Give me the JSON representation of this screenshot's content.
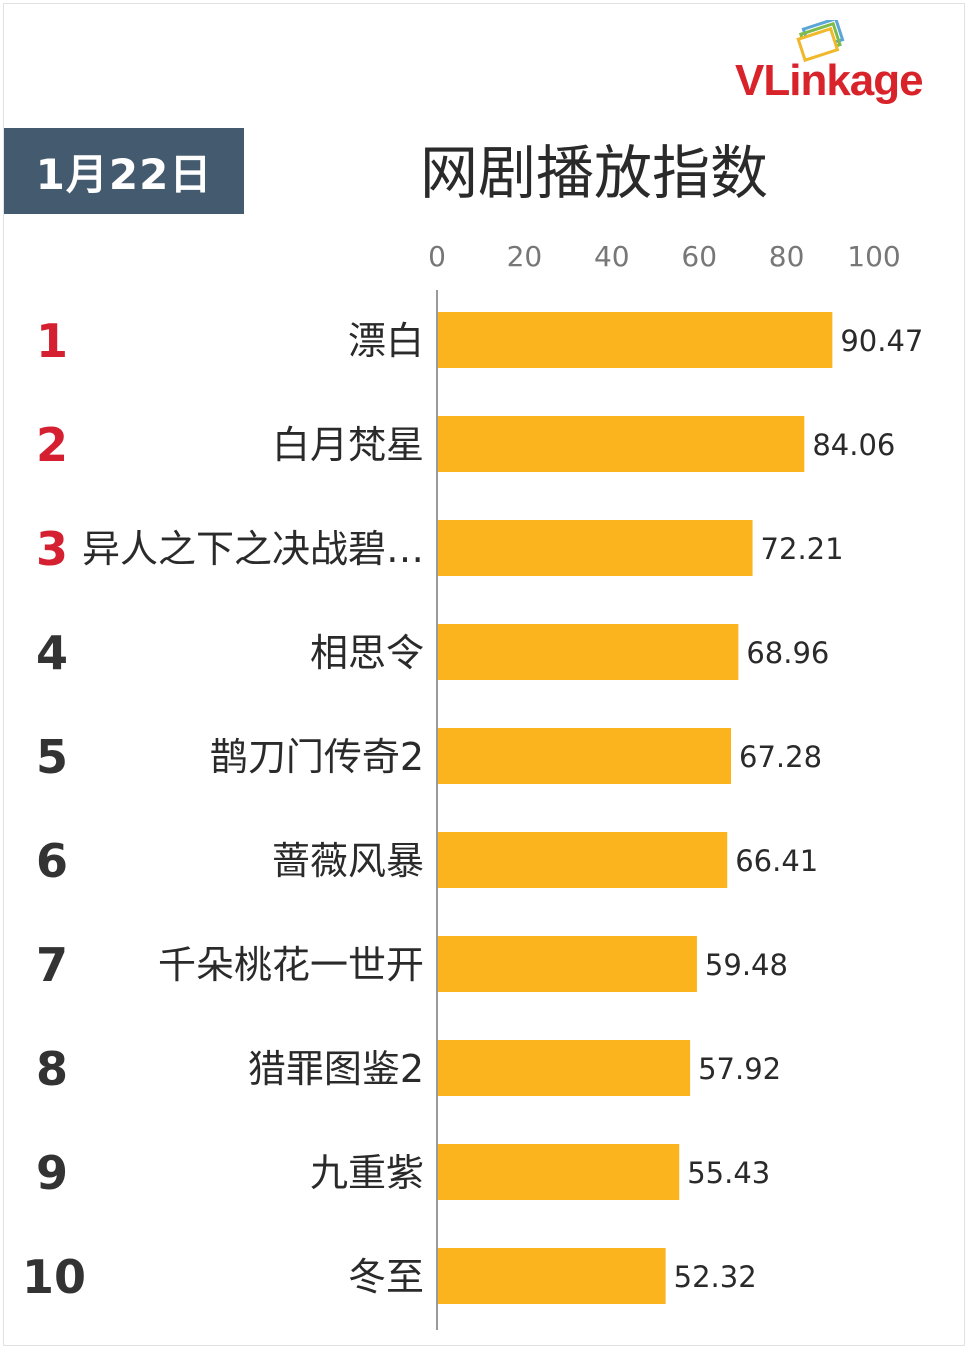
{
  "header": {
    "date_label": "1月22日",
    "logo": {
      "prefix": "VL",
      "suffix": "inkage",
      "color": "#d9232b",
      "icon": "stacked-cards-icon"
    }
  },
  "chart_data": {
    "type": "bar",
    "orientation": "horizontal",
    "title": "网剧播放指数",
    "xlim": [
      0,
      100
    ],
    "x_ticks": [
      "0",
      "20",
      "40",
      "60",
      "80",
      "100"
    ],
    "ranks": [
      "1",
      "2",
      "3",
      "4",
      "5",
      "6",
      "7",
      "8",
      "9",
      "10"
    ],
    "categories": [
      "漂白",
      "白月梵星",
      "异人之下之决战碧…",
      "相思令",
      "鹊刀门传奇2",
      "蔷薇风暴",
      "千朵桃花一世开",
      "猎罪图鉴2",
      "九重紫",
      "冬至"
    ],
    "values": [
      90.47,
      84.06,
      72.21,
      68.96,
      67.28,
      66.41,
      59.48,
      57.92,
      55.43,
      52.32
    ],
    "value_labels": [
      "90.47",
      "84.06",
      "72.21",
      "68.96",
      "67.28",
      "66.41",
      "59.48",
      "57.92",
      "55.43",
      "52.32"
    ],
    "grid": false,
    "colors": {
      "bar": "#fbb41d",
      "top_rank": "#d42030",
      "rank": "#333333",
      "label": "#2a2a2a",
      "axis": "#9a9a9a",
      "tick": "#777777"
    }
  }
}
